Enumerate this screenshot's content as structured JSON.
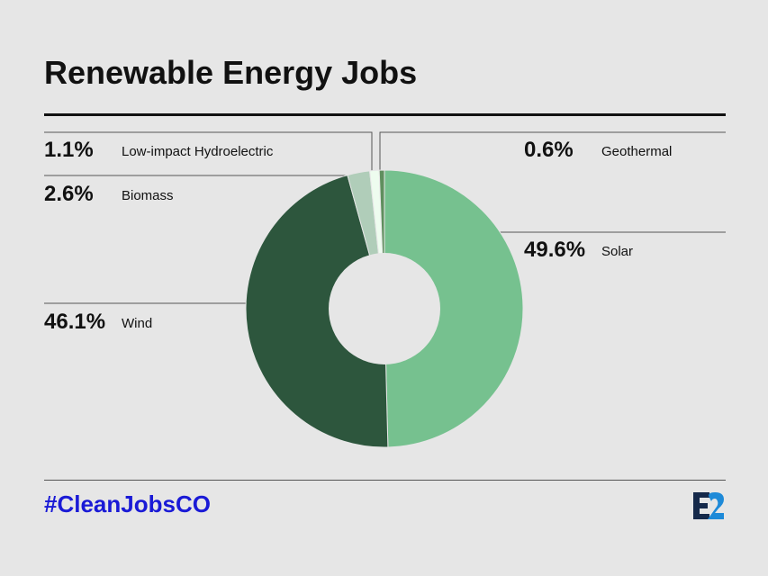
{
  "title": "Renewable Energy Jobs",
  "hashtag": "#CleanJobsCO",
  "logo": {
    "text": "E2",
    "colors": {
      "e": "#15294a",
      "two": "#1e8ad8"
    }
  },
  "chart_data": {
    "type": "pie",
    "variant": "donut",
    "title": "Renewable Energy Jobs",
    "series": [
      {
        "name": "Solar",
        "value": 49.6,
        "label": "49.6%",
        "color": "#76c18f"
      },
      {
        "name": "Wind",
        "value": 46.1,
        "label": "46.1%",
        "color": "#2d563d"
      },
      {
        "name": "Biomass",
        "value": 2.6,
        "label": "2.6%",
        "color": "#b0cdb9"
      },
      {
        "name": "Low-impact Hydroelectric",
        "value": 1.1,
        "label": "1.1%",
        "color": "#eefcef"
      },
      {
        "name": "Geothermal",
        "value": 0.6,
        "label": "0.6%",
        "color": "#5f8f5e"
      }
    ]
  }
}
